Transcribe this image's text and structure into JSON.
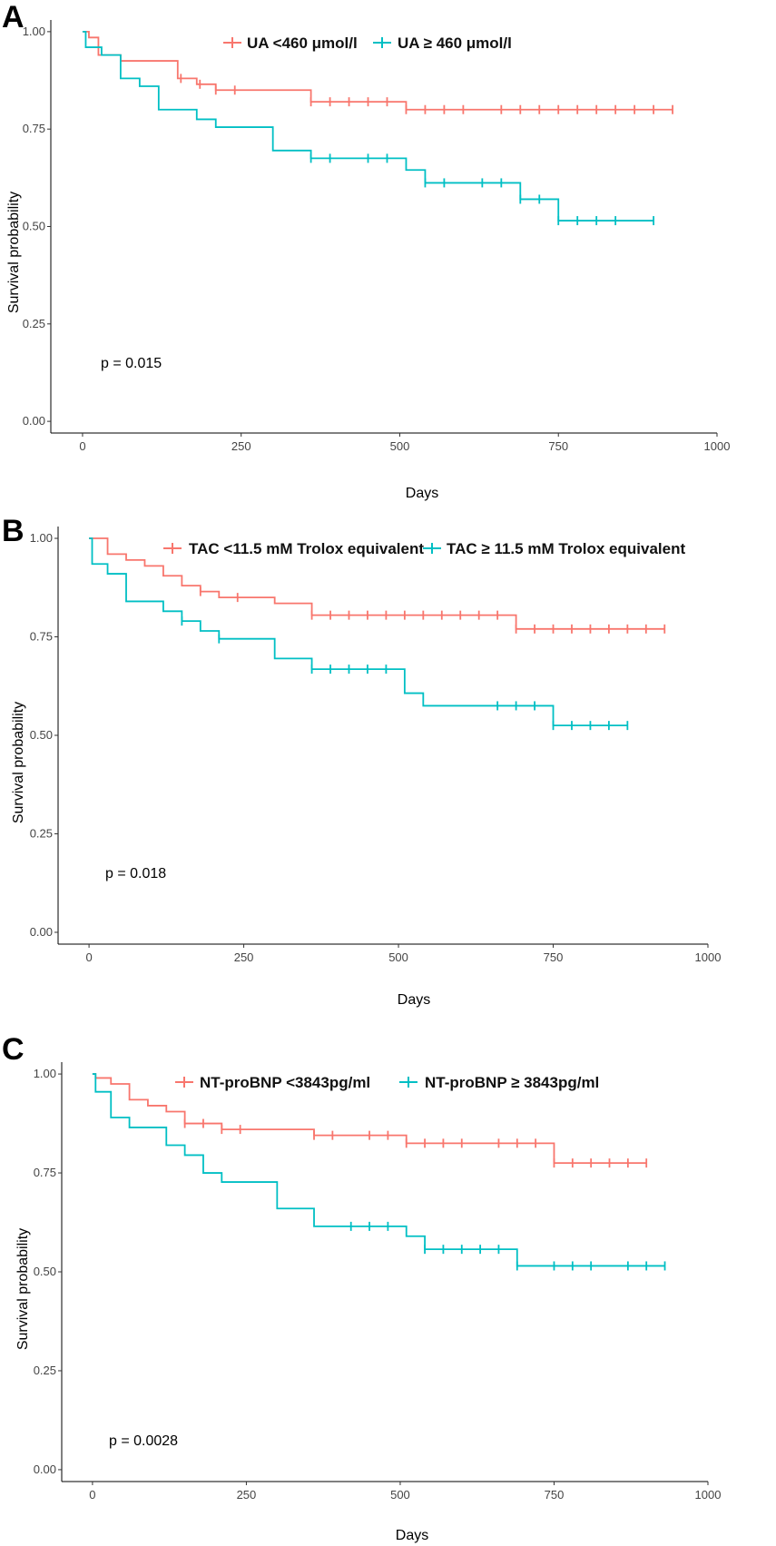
{
  "chart_data": [
    {
      "panel": "A",
      "type": "line",
      "subtype": "kaplan-meier",
      "xlabel": "Days",
      "ylabel": "Survival probability",
      "xlim": [
        -50,
        1000
      ],
      "ylim": [
        -0.03,
        1.03
      ],
      "xticks": [
        0,
        250,
        500,
        750,
        1000
      ],
      "yticks": [
        0.0,
        0.25,
        0.5,
        0.75,
        1.0
      ],
      "xtick_labels": [
        "0",
        "250",
        "500",
        "750",
        "1000"
      ],
      "ytick_labels": [
        "0.00",
        "0.25",
        "0.50",
        "0.75",
        "1.00"
      ],
      "p_value": "p = 0.015",
      "p_value_pos": [
        20,
        0.2
      ],
      "legend_placement": "top",
      "series": [
        {
          "name": "UA <460 μmol/l",
          "color": "#F8766D",
          "steps": [
            [
              0,
              1.0
            ],
            [
              10,
              0.985
            ],
            [
              25,
              0.94
            ],
            [
              60,
              0.925
            ],
            [
              150,
              0.88
            ],
            [
              180,
              0.865
            ],
            [
              210,
              0.85
            ],
            [
              360,
              0.82
            ],
            [
              510,
              0.8
            ],
            [
              930,
              0.8
            ]
          ],
          "censors": [
            [
              155,
              0.88
            ],
            [
              185,
              0.865
            ],
            [
              210,
              0.85
            ],
            [
              240,
              0.85
            ],
            [
              360,
              0.82
            ],
            [
              390,
              0.82
            ],
            [
              420,
              0.82
            ],
            [
              450,
              0.82
            ],
            [
              480,
              0.82
            ],
            [
              510,
              0.8
            ],
            [
              540,
              0.8
            ],
            [
              570,
              0.8
            ],
            [
              600,
              0.8
            ],
            [
              660,
              0.8
            ],
            [
              690,
              0.8
            ],
            [
              720,
              0.8
            ],
            [
              750,
              0.8
            ],
            [
              780,
              0.8
            ],
            [
              810,
              0.8
            ],
            [
              840,
              0.8
            ],
            [
              870,
              0.8
            ],
            [
              900,
              0.8
            ],
            [
              930,
              0.8
            ]
          ]
        },
        {
          "name": "UA ≥ 460 μmol/l",
          "color": "#00BFC4",
          "steps": [
            [
              0,
              1.0
            ],
            [
              5,
              0.96
            ],
            [
              30,
              0.94
            ],
            [
              60,
              0.88
            ],
            [
              90,
              0.86
            ],
            [
              120,
              0.8
            ],
            [
              180,
              0.775
            ],
            [
              210,
              0.755
            ],
            [
              300,
              0.695
            ],
            [
              360,
              0.675
            ],
            [
              510,
              0.645
            ],
            [
              540,
              0.612
            ],
            [
              690,
              0.57
            ],
            [
              750,
              0.515
            ],
            [
              900,
              0.515
            ]
          ],
          "censors": [
            [
              360,
              0.675
            ],
            [
              390,
              0.675
            ],
            [
              450,
              0.675
            ],
            [
              480,
              0.675
            ],
            [
              540,
              0.612
            ],
            [
              570,
              0.612
            ],
            [
              630,
              0.612
            ],
            [
              660,
              0.612
            ],
            [
              690,
              0.57
            ],
            [
              720,
              0.57
            ],
            [
              750,
              0.515
            ],
            [
              780,
              0.515
            ],
            [
              810,
              0.515
            ],
            [
              840,
              0.515
            ],
            [
              900,
              0.515
            ]
          ]
        }
      ]
    },
    {
      "panel": "B",
      "type": "line",
      "subtype": "kaplan-meier",
      "xlabel": "Days",
      "ylabel": "Survival probability",
      "xlim": [
        -50,
        1000
      ],
      "ylim": [
        -0.03,
        1.03
      ],
      "xticks": [
        0,
        250,
        500,
        750,
        1000
      ],
      "yticks": [
        0.0,
        0.25,
        0.5,
        0.75,
        1.0
      ],
      "xtick_labels": [
        "0",
        "250",
        "500",
        "750",
        "1000"
      ],
      "ytick_labels": [
        "0.00",
        "0.25",
        "0.50",
        "0.75",
        "1.00"
      ],
      "p_value": "p = 0.018",
      "p_value_pos": [
        20,
        0.2
      ],
      "legend_placement": "top",
      "series": [
        {
          "name": "TAC <11.5 mM Trolox equivalent",
          "color": "#F8766D",
          "steps": [
            [
              0,
              1.0
            ],
            [
              30,
              0.96
            ],
            [
              60,
              0.945
            ],
            [
              90,
              0.93
            ],
            [
              120,
              0.905
            ],
            [
              150,
              0.88
            ],
            [
              180,
              0.865
            ],
            [
              210,
              0.85
            ],
            [
              300,
              0.835
            ],
            [
              360,
              0.805
            ],
            [
              690,
              0.77
            ],
            [
              930,
              0.77
            ]
          ],
          "censors": [
            [
              180,
              0.865
            ],
            [
              240,
              0.85
            ],
            [
              360,
              0.805
            ],
            [
              390,
              0.805
            ],
            [
              420,
              0.805
            ],
            [
              450,
              0.805
            ],
            [
              480,
              0.805
            ],
            [
              510,
              0.805
            ],
            [
              540,
              0.805
            ],
            [
              570,
              0.805
            ],
            [
              600,
              0.805
            ],
            [
              630,
              0.805
            ],
            [
              660,
              0.805
            ],
            [
              690,
              0.77
            ],
            [
              720,
              0.77
            ],
            [
              750,
              0.77
            ],
            [
              780,
              0.77
            ],
            [
              810,
              0.77
            ],
            [
              840,
              0.77
            ],
            [
              870,
              0.77
            ],
            [
              900,
              0.77
            ],
            [
              930,
              0.77
            ]
          ]
        },
        {
          "name": "TAC ≥ 11.5 mM Trolox equivalent",
          "color": "#00BFC4",
          "steps": [
            [
              0,
              1.0
            ],
            [
              5,
              0.935
            ],
            [
              30,
              0.91
            ],
            [
              60,
              0.84
            ],
            [
              120,
              0.815
            ],
            [
              150,
              0.79
            ],
            [
              180,
              0.765
            ],
            [
              210,
              0.745
            ],
            [
              300,
              0.695
            ],
            [
              360,
              0.668
            ],
            [
              510,
              0.607
            ],
            [
              540,
              0.575
            ],
            [
              660,
              0.575
            ],
            [
              750,
              0.525
            ],
            [
              870,
              0.525
            ]
          ],
          "censors": [
            [
              150,
              0.79
            ],
            [
              210,
              0.745
            ],
            [
              360,
              0.668
            ],
            [
              390,
              0.668
            ],
            [
              420,
              0.668
            ],
            [
              450,
              0.668
            ],
            [
              480,
              0.668
            ],
            [
              660,
              0.575
            ],
            [
              690,
              0.575
            ],
            [
              720,
              0.575
            ],
            [
              750,
              0.525
            ],
            [
              780,
              0.525
            ],
            [
              810,
              0.525
            ],
            [
              840,
              0.525
            ],
            [
              870,
              0.525
            ]
          ]
        }
      ]
    },
    {
      "panel": "C",
      "type": "line",
      "subtype": "kaplan-meier",
      "xlabel": "Days",
      "ylabel": "Survival probability",
      "xlim": [
        -50,
        1000
      ],
      "ylim": [
        -0.03,
        1.03
      ],
      "xticks": [
        0,
        250,
        500,
        750,
        1000
      ],
      "yticks": [
        0.0,
        0.25,
        0.5,
        0.75,
        1.0
      ],
      "xtick_labels": [
        "0",
        "250",
        "500",
        "750",
        "1000"
      ],
      "ytick_labels": [
        "0.00",
        "0.25",
        "0.50",
        "0.75",
        "1.00"
      ],
      "p_value": "p = 0.0028",
      "p_value_pos": [
        20,
        0.2
      ],
      "legend_placement": "top",
      "series": [
        {
          "name": "NT-proBNP <3843pg/ml",
          "color": "#F8766D",
          "steps": [
            [
              0,
              1.0
            ],
            [
              5,
              0.99
            ],
            [
              30,
              0.975
            ],
            [
              60,
              0.935
            ],
            [
              90,
              0.92
            ],
            [
              120,
              0.905
            ],
            [
              150,
              0.875
            ],
            [
              210,
              0.86
            ],
            [
              360,
              0.845
            ],
            [
              510,
              0.825
            ],
            [
              750,
              0.775
            ],
            [
              900,
              0.775
            ]
          ],
          "censors": [
            [
              150,
              0.875
            ],
            [
              180,
              0.875
            ],
            [
              210,
              0.86
            ],
            [
              240,
              0.86
            ],
            [
              360,
              0.845
            ],
            [
              390,
              0.845
            ],
            [
              450,
              0.845
            ],
            [
              480,
              0.845
            ],
            [
              510,
              0.825
            ],
            [
              540,
              0.825
            ],
            [
              570,
              0.825
            ],
            [
              600,
              0.825
            ],
            [
              660,
              0.825
            ],
            [
              690,
              0.825
            ],
            [
              720,
              0.825
            ],
            [
              750,
              0.775
            ],
            [
              780,
              0.775
            ],
            [
              810,
              0.775
            ],
            [
              840,
              0.775
            ],
            [
              870,
              0.775
            ],
            [
              900,
              0.775
            ]
          ]
        },
        {
          "name": "NT-proBNP ≥ 3843pg/ml",
          "color": "#00BFC4",
          "steps": [
            [
              0,
              1.0
            ],
            [
              5,
              0.955
            ],
            [
              30,
              0.89
            ],
            [
              60,
              0.865
            ],
            [
              120,
              0.82
            ],
            [
              150,
              0.795
            ],
            [
              180,
              0.75
            ],
            [
              210,
              0.727
            ],
            [
              300,
              0.66
            ],
            [
              360,
              0.615
            ],
            [
              510,
              0.59
            ],
            [
              540,
              0.557
            ],
            [
              690,
              0.515
            ],
            [
              930,
              0.515
            ]
          ],
          "censors": [
            [
              420,
              0.615
            ],
            [
              450,
              0.615
            ],
            [
              480,
              0.615
            ],
            [
              540,
              0.557
            ],
            [
              570,
              0.557
            ],
            [
              600,
              0.557
            ],
            [
              630,
              0.557
            ],
            [
              660,
              0.557
            ],
            [
              690,
              0.515
            ],
            [
              750,
              0.515
            ],
            [
              780,
              0.515
            ],
            [
              810,
              0.515
            ],
            [
              870,
              0.515
            ],
            [
              900,
              0.515
            ],
            [
              930,
              0.515
            ]
          ]
        }
      ]
    }
  ]
}
